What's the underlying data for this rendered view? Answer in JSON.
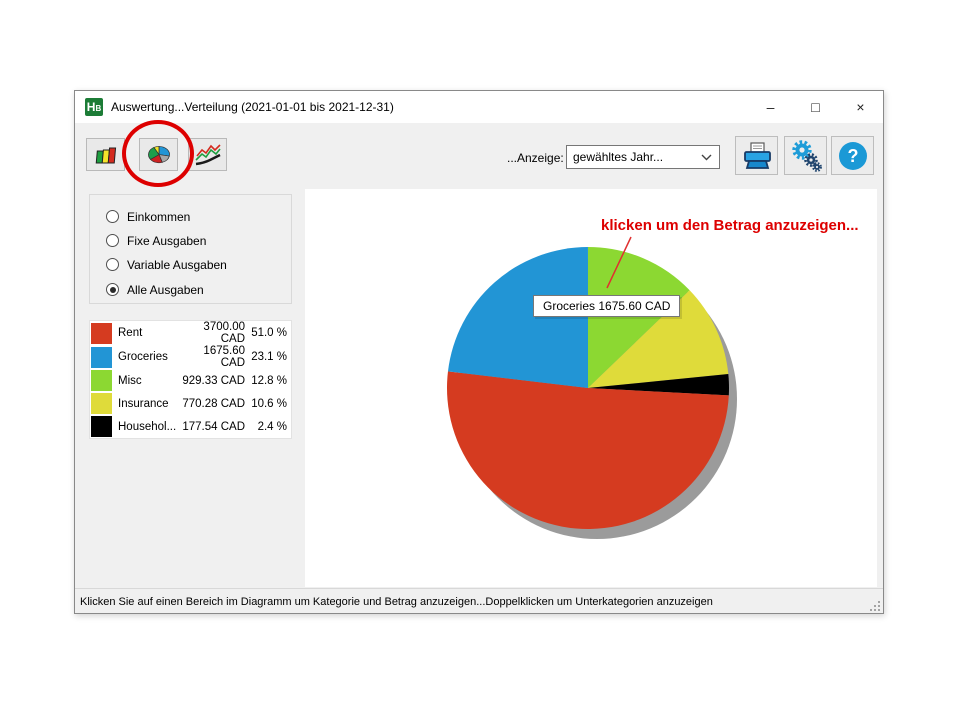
{
  "window": {
    "title": "Auswertung...Verteilung (2021-01-01 bis 2021-12-31)",
    "app_icon_h": "H",
    "app_icon_b": "B",
    "controls": {
      "minimize": "–",
      "maximize": "□",
      "close": "×"
    }
  },
  "toolbar": {
    "view_label": "...Anzeige:",
    "view_value": "gewähltes Jahr..."
  },
  "filters": {
    "options": [
      {
        "label": "Einkommen",
        "selected": false
      },
      {
        "label": "Fixe Ausgaben",
        "selected": false
      },
      {
        "label": "Variable Ausgaben",
        "selected": false
      },
      {
        "label": "Alle Ausgaben",
        "selected": true
      }
    ]
  },
  "legend": {
    "rows": [
      {
        "label": "Rent",
        "amount": "3700.00 CAD",
        "percent": "51.0 %",
        "color": "#d53b20"
      },
      {
        "label": "Groceries",
        "amount": "1675.60 CAD",
        "percent": "23.1 %",
        "color": "#2295d5"
      },
      {
        "label": "Misc",
        "amount": "929.33 CAD",
        "percent": "12.8 %",
        "color": "#8cd832"
      },
      {
        "label": "Insurance",
        "amount": "770.28 CAD",
        "percent": "10.6 %",
        "color": "#dfdb3a"
      },
      {
        "label": "Househol...",
        "amount": "177.54 CAD",
        "percent": "2.4 %",
        "color": "#000000"
      }
    ]
  },
  "chart_data": {
    "type": "pie",
    "title": "",
    "unit": "CAD",
    "order": "clockwise-from-12-oclock",
    "slices": [
      {
        "label": "Misc",
        "amount": 929.33,
        "percent": 12.8,
        "color": "#8cd832"
      },
      {
        "label": "Insurance",
        "amount": 770.28,
        "percent": 10.6,
        "color": "#dfdb3a"
      },
      {
        "label": "Household",
        "amount": 177.54,
        "percent": 2.4,
        "color": "#000000"
      },
      {
        "label": "Rent",
        "amount": 3700.0,
        "percent": 51.0,
        "color": "#d53b20"
      },
      {
        "label": "Groceries",
        "amount": 1675.6,
        "percent": 23.1,
        "color": "#2295d5"
      }
    ],
    "legend_position": "left"
  },
  "tooltip": {
    "text": "Groceries 1675.60 CAD"
  },
  "annotation": {
    "text": "klicken um den Betrag anzuzeigen..."
  },
  "statusbar": {
    "text": "Klicken Sie auf einen Bereich im Diagramm um Kategorie und Betrag anzuzeigen...Doppelklicken um Unterkategorien anzuzeigen"
  },
  "accents": {
    "annotation_red": "#dd0000",
    "help_blue": "#1b99d6",
    "app_green": "#1c7c36"
  }
}
